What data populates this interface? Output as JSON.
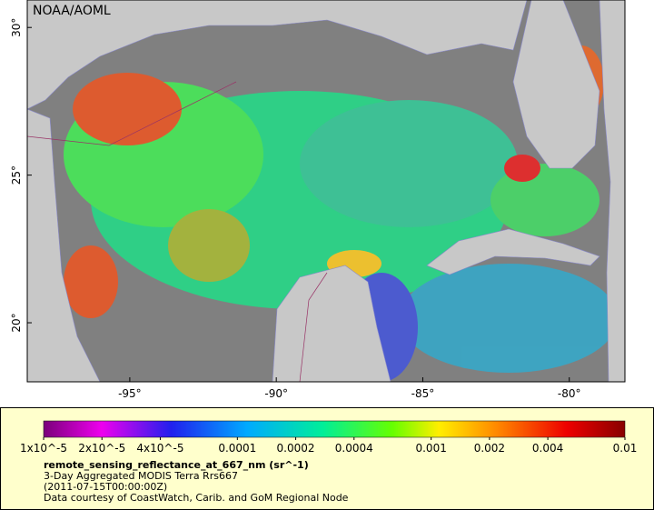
{
  "map": {
    "watermark": "NOAA/AOML",
    "xlim": [
      -98.5,
      -78.1
    ],
    "ylim": [
      18.0,
      30.93
    ],
    "xticks": [
      {
        "value": -95,
        "label": "-95°"
      },
      {
        "value": -90,
        "label": "-90°"
      },
      {
        "value": -85,
        "label": "-85°"
      },
      {
        "value": -80,
        "label": "-80°"
      }
    ],
    "yticks": [
      {
        "value": 20,
        "label": "20°"
      },
      {
        "value": 25,
        "label": "25°"
      },
      {
        "value": 30,
        "label": "30°"
      }
    ]
  },
  "colorbar": {
    "lim": [
      1e-05,
      0.01
    ],
    "log": true,
    "ticks": [
      {
        "value": 1e-05,
        "label": "1x10^-5"
      },
      {
        "value": 2e-05,
        "label": "2x10^-5"
      },
      {
        "value": 4e-05,
        "label": "4x10^-5"
      },
      0.0001,
      0.0002,
      0.0004,
      0.001,
      0.002,
      0.004,
      0.01
    ]
  },
  "caption": {
    "variable": "remote_sensing_reflectance_at_667_nm (sr^-1)",
    "lines": [
      "3-Day Aggregated MODIS Terra Rrs667",
      "(2011-07-15T00:00:00Z)",
      "Data courtesy of CoastWatch, Carib. and GoM Regional Node"
    ]
  }
}
